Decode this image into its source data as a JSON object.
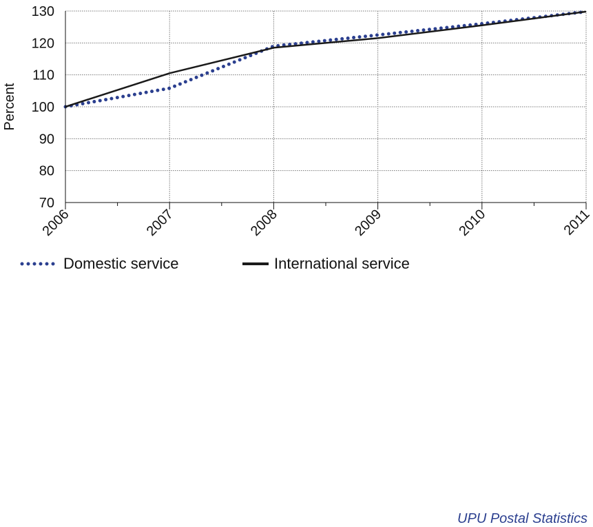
{
  "chart_data": {
    "type": "line",
    "x": [
      "2006",
      "2007",
      "2008",
      "2009",
      "2010",
      "2011"
    ],
    "ylabel": "Percent",
    "ylim": [
      70,
      130
    ],
    "yticks": [
      70,
      80,
      90,
      100,
      110,
      120,
      130
    ],
    "grid": true,
    "series": [
      {
        "name": "Domestic service",
        "values": [
          100,
          105.8,
          119,
          122.5,
          126,
          129.8
        ],
        "color": "#2b3f8f",
        "style": "dotted"
      },
      {
        "name": "International service",
        "values": [
          100,
          110.5,
          118.5,
          121.5,
          125.5,
          129.8
        ],
        "color": "#1a1a1a",
        "style": "solid"
      }
    ],
    "legend_position": "bottom",
    "source": "UPU Postal Statistics"
  }
}
